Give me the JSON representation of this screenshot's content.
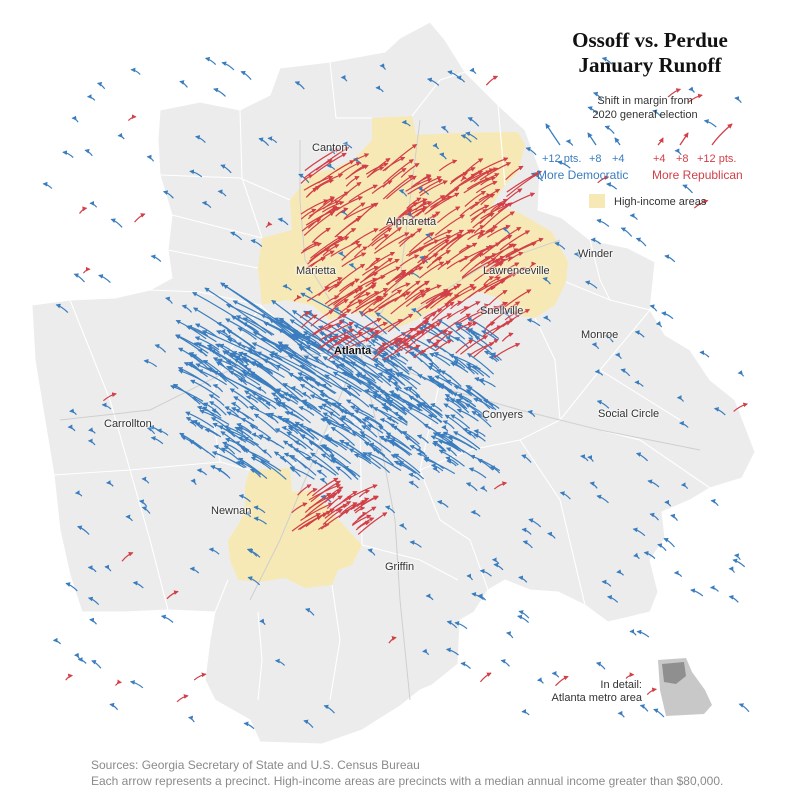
{
  "title": {
    "line1": "Ossoff vs. Perdue",
    "line2": "January Runoff"
  },
  "legend": {
    "heading_line1": "Shift in margin from",
    "heading_line2": "2020 general election",
    "dem_values": [
      "+12 pts.",
      "+8",
      "+4"
    ],
    "rep_values": [
      "+4",
      "+8",
      "+12 pts."
    ],
    "dem_label": "More Democratic",
    "rep_label": "More Republican",
    "high_income_label": "High-income areas"
  },
  "colors": {
    "democratic": "#3a7dbf",
    "republican": "#d23f47",
    "high_income": "#f7e9b5",
    "land": "#ececec",
    "boundary": "#ffffff"
  },
  "cities": [
    {
      "name": "Canton",
      "main": false
    },
    {
      "name": "Alpharetta",
      "main": false
    },
    {
      "name": "Marietta",
      "main": false
    },
    {
      "name": "Lawrenceville",
      "main": false
    },
    {
      "name": "Winder",
      "main": false
    },
    {
      "name": "Snellville",
      "main": false
    },
    {
      "name": "Monroe",
      "main": false
    },
    {
      "name": "Atlanta",
      "main": true
    },
    {
      "name": "Carrollton",
      "main": false
    },
    {
      "name": "Conyers",
      "main": false
    },
    {
      "name": "Social Circle",
      "main": false
    },
    {
      "name": "Newnan",
      "main": false
    },
    {
      "name": "Griffin",
      "main": false
    }
  ],
  "inset": {
    "line1": "In detail:",
    "line2": "Atlanta metro area"
  },
  "footer": {
    "sources": "Sources: Georgia Secretary of State and U.S. Census Bureau",
    "note": "Each arrow represents a precinct. High-income areas are precincts with a median annual income greater than $80,000."
  }
}
